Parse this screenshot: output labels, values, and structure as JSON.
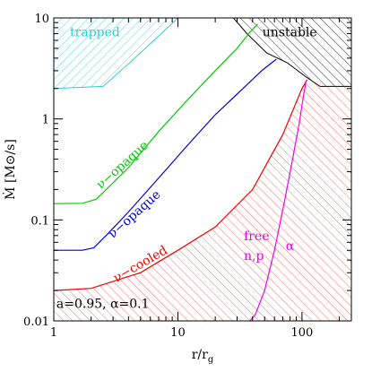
{
  "chart_data": {
    "type": "line",
    "xlabel": "r/r",
    "xlabel_sub": "g",
    "ylabel": "Ṁ  [M⊙/s]",
    "x_scale": "log",
    "y_scale": "log",
    "xlim": [
      1,
      250
    ],
    "ylim": [
      0.01,
      10
    ],
    "x_ticks": [
      {
        "value": 1,
        "label": "1"
      },
      {
        "value": 10,
        "label": "10"
      },
      {
        "value": 100,
        "label": "100"
      }
    ],
    "y_ticks": [
      {
        "value": 0.01,
        "label": "0.01"
      },
      {
        "value": 0.1,
        "label": "0.1"
      },
      {
        "value": 1,
        "label": "1"
      },
      {
        "value": 10,
        "label": "10"
      }
    ],
    "series": [
      {
        "name": "ν−opaque",
        "color": "#00cc00",
        "x": [
          1.0,
          1.7,
          2.2,
          4,
          7,
          12,
          20,
          30,
          38,
          44
        ],
        "y": [
          0.145,
          0.146,
          0.16,
          0.33,
          0.75,
          1.55,
          3.0,
          5.0,
          7.2,
          8.7
        ]
      },
      {
        "name": "ν−opaque",
        "color": "#0000dd",
        "x": [
          1.0,
          1.7,
          2.1,
          2.7,
          4,
          7,
          12,
          20,
          32,
          48,
          62
        ],
        "y": [
          0.05,
          0.05,
          0.053,
          0.072,
          0.12,
          0.26,
          0.55,
          1.1,
          1.9,
          3.05,
          3.9
        ]
      },
      {
        "name": "ν−cooled",
        "color": "#ee0000",
        "x": [
          1.0,
          2.0,
          5,
          10,
          20,
          40,
          70,
          100,
          110
        ],
        "y": [
          0.02,
          0.021,
          0.03,
          0.05,
          0.085,
          0.2,
          0.7,
          2.0,
          2.45
        ]
      },
      {
        "name": "free",
        "color": "#ee00ee",
        "x": [
          38,
          42,
          50,
          60,
          72,
          84,
          95,
          102,
          108
        ],
        "y": [
          0.01,
          0.0115,
          0.02,
          0.05,
          0.15,
          0.4,
          0.9,
          1.6,
          2.4
        ]
      }
    ],
    "regions": [
      {
        "name": "trapped",
        "color": "#33cccc",
        "boundary_x": [
          1,
          2.5,
          4.8,
          7.8,
          10,
          10,
          1
        ],
        "boundary_y": [
          2.0,
          2.1,
          4.3,
          7.5,
          10,
          10,
          10
        ]
      },
      {
        "name": "unstable",
        "color": "#000000",
        "boundary_x": [
          28,
          36,
          52,
          76,
          108,
          140,
          250,
          250,
          28
        ],
        "boundary_y": [
          10,
          7.0,
          4.5,
          3.6,
          2.6,
          2.1,
          2.1,
          10,
          10
        ]
      },
      {
        "name": "cooled",
        "color": "#ee3333",
        "boundary_x": [
          1,
          2,
          5,
          10,
          20,
          40,
          70,
          100,
          110,
          140,
          250,
          250,
          1
        ],
        "boundary_y": [
          0.02,
          0.021,
          0.03,
          0.05,
          0.085,
          0.2,
          0.7,
          2.0,
          2.45,
          2.1,
          2.1,
          0.01,
          0.01
        ]
      }
    ],
    "annotations": [
      {
        "text": "trapped",
        "color": "#33cccc",
        "x": 1.35,
        "y": 6.6,
        "rotate": 0
      },
      {
        "text": "unstable",
        "color": "#000000",
        "x": 48,
        "y": 6.6,
        "rotate": 0
      },
      {
        "text": "ν−opaque",
        "color": "#00cc00",
        "x": 2.4,
        "y": 0.2,
        "rotate": -42
      },
      {
        "text": "ν−opaque",
        "color": "#0000dd",
        "x": 3.0,
        "y": 0.065,
        "rotate": -42
      },
      {
        "text": "ν−cooled",
        "color": "#ee0000",
        "x": 3.2,
        "y": 0.024,
        "rotate": -30
      },
      {
        "text": "free",
        "color": "#ee00ee",
        "x": 34,
        "y": 0.063,
        "rotate": 0
      },
      {
        "text": "α",
        "color": "#ee00ee",
        "x": 74,
        "y": 0.05,
        "rotate": 0
      },
      {
        "text": "n,p",
        "color": "#ee00ee",
        "x": 34,
        "y": 0.04,
        "rotate": 0
      },
      {
        "text": "a=0.95,  α=0.1",
        "color": "#000000",
        "x": 1.05,
        "y": 0.0135,
        "rotate": 0
      }
    ]
  }
}
